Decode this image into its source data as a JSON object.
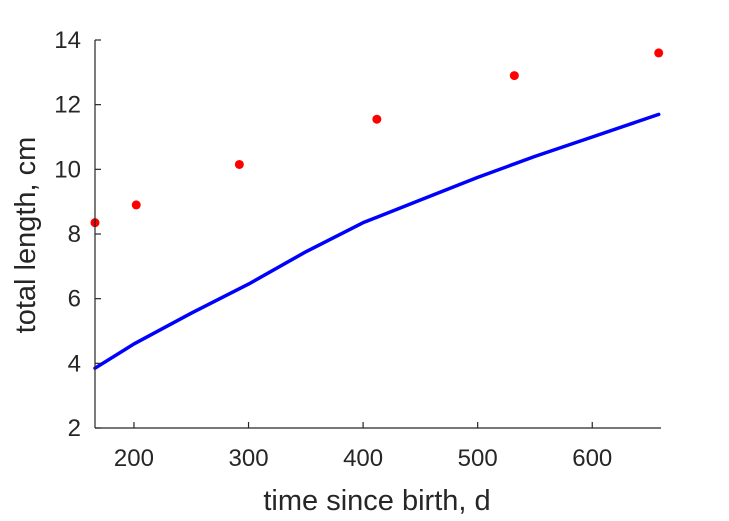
{
  "chart_data": {
    "type": "scatter",
    "xlabel": "time since birth, d",
    "ylabel": "total length, cm",
    "xlim": [
      166,
      660
    ],
    "ylim": [
      2,
      14
    ],
    "xticks": [
      200,
      300,
      400,
      500,
      600
    ],
    "yticks": [
      2,
      4,
      6,
      8,
      10,
      12,
      14
    ],
    "grid": false,
    "legend": "none",
    "series": [
      {
        "type": "scatter",
        "color": "#ff0000",
        "x": [
          166,
          202,
          292,
          412,
          532,
          658
        ],
        "y": [
          8.35,
          8.9,
          10.15,
          11.55,
          12.9,
          13.6
        ]
      },
      {
        "type": "line",
        "color": "#0000ff",
        "x": [
          166,
          200,
          250,
          300,
          350,
          400,
          450,
          500,
          550,
          600,
          658
        ],
        "y": [
          3.85,
          4.6,
          5.55,
          6.45,
          7.45,
          8.35,
          9.05,
          9.75,
          10.4,
          11.0,
          11.7
        ]
      }
    ]
  }
}
